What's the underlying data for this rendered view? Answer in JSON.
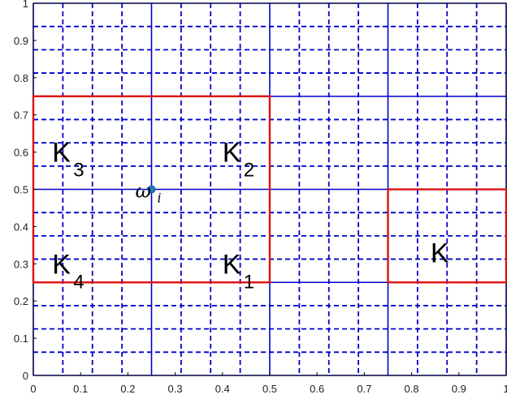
{
  "chart_data": {
    "type": "diagram",
    "xlim": [
      0,
      1
    ],
    "ylim": [
      0,
      1
    ],
    "x_ticks": [
      "0",
      "0.1",
      "0.2",
      "0.3",
      "0.4",
      "0.5",
      "0.6",
      "0.7",
      "0.8",
      "0.9",
      "1"
    ],
    "y_ticks": [
      "0",
      "0.1",
      "0.2",
      "0.3",
      "0.4",
      "0.5",
      "0.6",
      "0.7",
      "0.8",
      "0.9",
      "1"
    ],
    "grid": {
      "coarse_step": 0.25,
      "fine_step": 0.0625,
      "color": "#0000cc",
      "fine_style": "dashed"
    },
    "rectangles": [
      {
        "x": [
          0,
          0.5
        ],
        "y": [
          0.25,
          0.75
        ],
        "color": "#dd1111"
      },
      {
        "x": [
          0.75,
          1
        ],
        "y": [
          0.25,
          0.5
        ],
        "color": "#dd1111"
      }
    ],
    "regions": [
      {
        "label": "K",
        "sub": "3",
        "x": 0.04,
        "y": 0.6
      },
      {
        "label": "K",
        "sub": "2",
        "x": 0.4,
        "y": 0.6
      },
      {
        "label": "K",
        "sub": "4",
        "x": 0.04,
        "y": 0.3
      },
      {
        "label": "K",
        "sub": "1",
        "x": 0.4,
        "y": 0.3
      },
      {
        "label": "K",
        "sub": "",
        "x": 0.84,
        "y": 0.33
      }
    ],
    "point": {
      "x": 0.25,
      "y": 0.5,
      "label": "ω",
      "sub": "i",
      "color": "#1a7fc0"
    }
  }
}
